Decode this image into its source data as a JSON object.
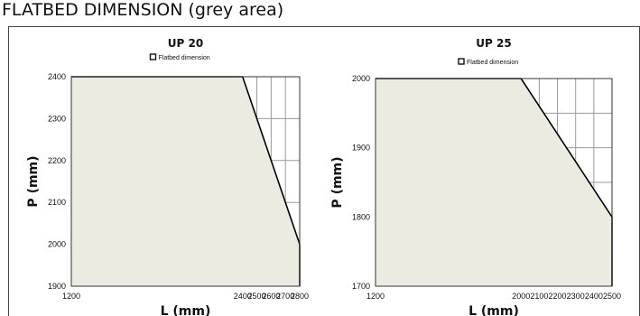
{
  "page": {
    "title": "FLATBED DIMENSION (grey area)"
  },
  "colors": {
    "flatbed_fill": "#ecebe1",
    "boundary": "#000000",
    "grid": "#9a9a9a",
    "plot_border": "#333333"
  },
  "chart_data": [
    {
      "type": "area",
      "title": "UP 20",
      "legend": [
        "Flatbed dimension"
      ],
      "legend_position": "top-center",
      "xlabel": "L (mm)",
      "ylabel": "P (mm)",
      "xlim": [
        1200,
        2800
      ],
      "ylim": [
        1900,
        2400
      ],
      "grid": true,
      "x_ticks": [
        1200,
        1300,
        1400,
        1500,
        1600,
        1700,
        1800,
        1900,
        2000,
        2100,
        2200,
        2300,
        2400,
        2500,
        2600,
        2700,
        2800
      ],
      "x_tick_labels": [
        "1200",
        "",
        "",
        "",
        "",
        "",
        "",
        "",
        "",
        "",
        "",
        "",
        "2400",
        "2500",
        "2600",
        "2700",
        "2800"
      ],
      "y_ticks": [
        1900,
        2000,
        2100,
        2200,
        2300,
        2400
      ],
      "y_tick_labels": [
        "1900",
        "2000",
        "2100",
        "2200",
        "2300",
        "2400"
      ],
      "series": [
        {
          "name": "Flatbed dimension",
          "x": [
            1200,
            2400,
            2800,
            2800
          ],
          "y": [
            2400,
            2400,
            2000,
            1900
          ]
        }
      ]
    },
    {
      "type": "area",
      "title": "UP 25",
      "legend": [
        "Flatbed dimension"
      ],
      "legend_position": "top-center",
      "xlabel": "L (mm)",
      "ylabel": "P (mm)",
      "xlim": [
        1200,
        2500
      ],
      "ylim": [
        1700,
        2000
      ],
      "grid": true,
      "x_ticks": [
        1200,
        1300,
        1400,
        1500,
        1600,
        1700,
        1800,
        1900,
        2000,
        2100,
        2200,
        2300,
        2400,
        2500
      ],
      "x_tick_labels": [
        "1200",
        "",
        "",
        "",
        "",
        "",
        "",
        "",
        "2000",
        "2100",
        "2200",
        "2300",
        "2400",
        "2500"
      ],
      "y_ticks": [
        1700,
        1750,
        1800,
        1850,
        1900,
        1950,
        2000
      ],
      "y_tick_labels": [
        "1700",
        "",
        "1800",
        "",
        "1900",
        "",
        "2000"
      ],
      "series": [
        {
          "name": "Flatbed dimension",
          "x": [
            1200,
            2000,
            2500,
            2500
          ],
          "y": [
            2000,
            2000,
            1800,
            1700
          ]
        }
      ]
    }
  ]
}
